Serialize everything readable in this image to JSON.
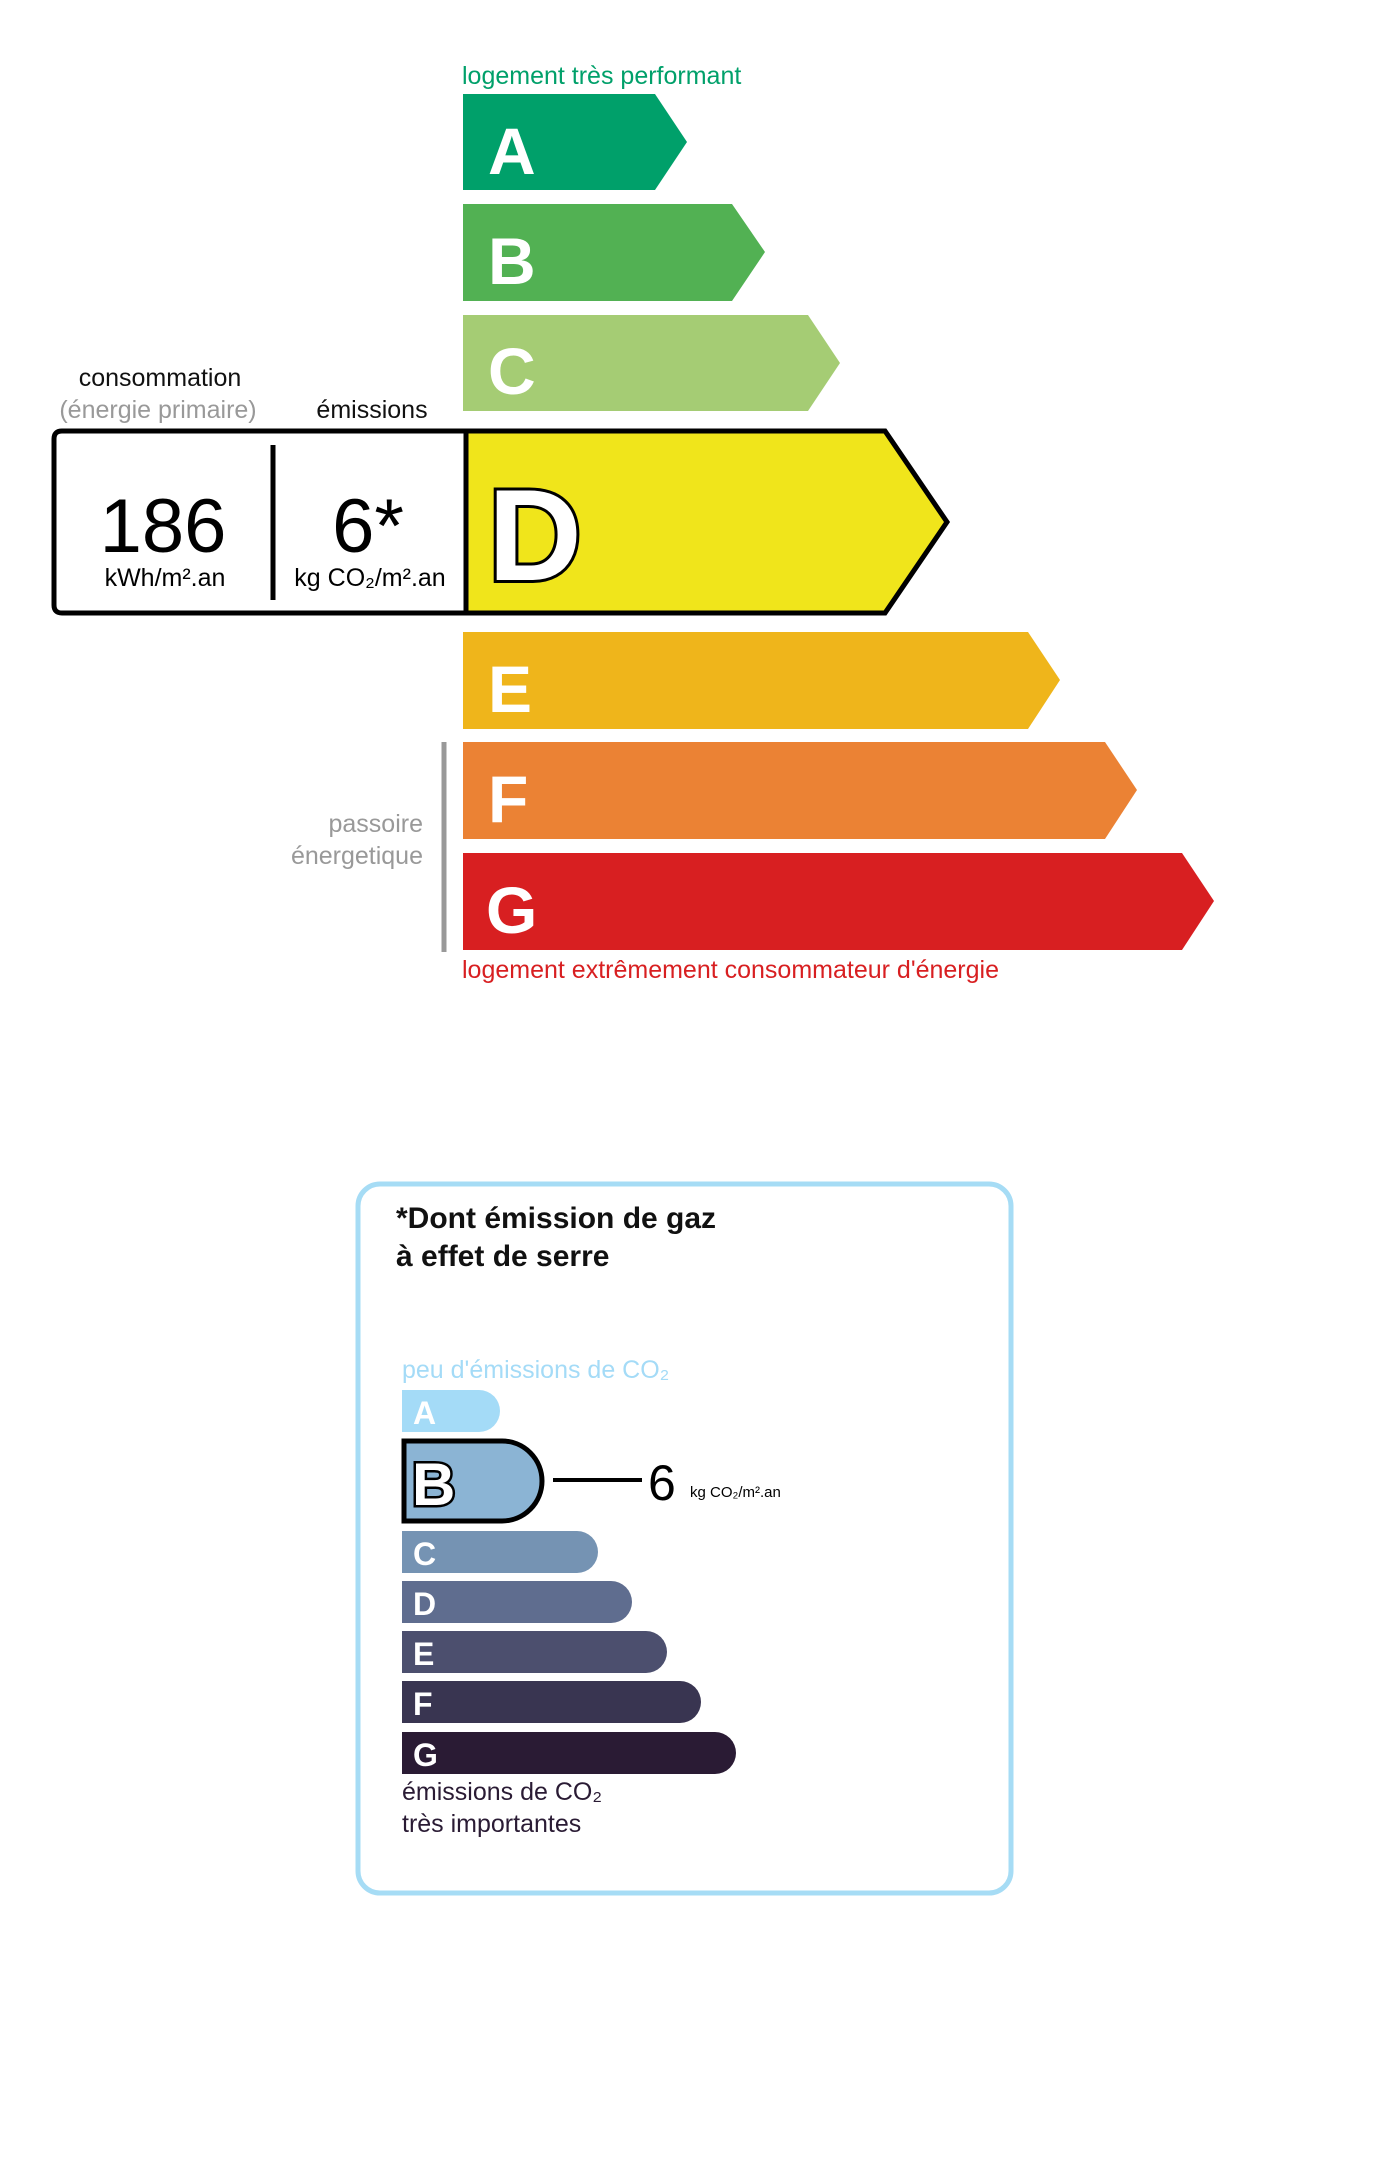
{
  "energy_label": {
    "top_caption": "logement très performant",
    "bottom_caption": "logement extrêmement consommateur d'énergie",
    "passoire_line1": "passoire",
    "passoire_line2": "énergetique",
    "consumption_header_line1": "consommation",
    "consumption_header_line2": "(énergie primaire)",
    "emissions_header": "émissions",
    "consumption_value": "186",
    "consumption_unit": "kWh/m².an",
    "emissions_value": "6*",
    "emissions_unit": "kg CO₂/m².an",
    "current_class": "D",
    "classes": [
      {
        "letter": "A",
        "color": "#00a06a"
      },
      {
        "letter": "B",
        "color": "#52b153"
      },
      {
        "letter": "C",
        "color": "#a5cc74"
      },
      {
        "letter": "D",
        "color": "#f0e51b"
      },
      {
        "letter": "E",
        "color": "#efb51b"
      },
      {
        "letter": "F",
        "color": "#eb8234"
      },
      {
        "letter": "G",
        "color": "#d81f21"
      }
    ],
    "top_caption_color": "#00a06a",
    "bottom_caption_color": "#d81f21"
  },
  "ghg_label": {
    "title_line1": "*Dont émission de gaz",
    "title_line2": "à effet de serre",
    "top_caption": "peu d'émissions de CO₂",
    "bottom_caption_line1": "émissions de CO₂",
    "bottom_caption_line2": "très importantes",
    "value": "6",
    "unit": "kg CO₂/m².an",
    "current_class": "B",
    "border_color": "#a6dcf5",
    "classes": [
      {
        "letter": "A",
        "color": "#a4dbf7"
      },
      {
        "letter": "B",
        "color": "#8bb4d4"
      },
      {
        "letter": "C",
        "color": "#7593b3"
      },
      {
        "letter": "D",
        "color": "#5f6d8f"
      },
      {
        "letter": "E",
        "color": "#4c4f6e"
      },
      {
        "letter": "F",
        "color": "#393551"
      },
      {
        "letter": "G",
        "color": "#2a1b34"
      }
    ]
  }
}
